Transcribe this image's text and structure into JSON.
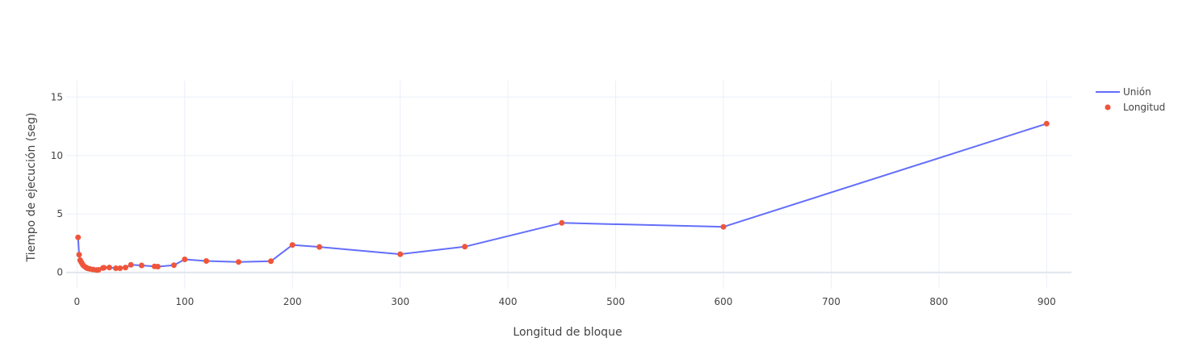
{
  "chart_data": {
    "type": "line",
    "xlabel": "Longitud de bloque",
    "ylabel": "Tiempo de ejecución (seg)",
    "xlim": [
      -10,
      923
    ],
    "ylim": [
      -1.4,
      16.4
    ],
    "xticks": [
      0,
      100,
      200,
      300,
      400,
      500,
      600,
      700,
      800,
      900
    ],
    "yticks": [
      0,
      5,
      10,
      15
    ],
    "grid": true,
    "legend_position": "top-right",
    "series": [
      {
        "name": "Unión",
        "mode": "line",
        "color": "#636efa",
        "x": [
          1,
          2,
          3,
          4,
          5,
          6,
          8,
          9,
          10,
          12,
          15,
          18,
          20,
          24,
          25,
          30,
          36,
          40,
          45,
          50,
          60,
          72,
          75,
          90,
          100,
          120,
          150,
          180,
          200,
          225,
          300,
          360,
          450,
          600,
          900
        ],
        "y": [
          3.0,
          1.52,
          1.05,
          0.88,
          0.72,
          0.58,
          0.45,
          0.38,
          0.35,
          0.3,
          0.25,
          0.21,
          0.22,
          0.38,
          0.4,
          0.42,
          0.36,
          0.36,
          0.42,
          0.65,
          0.6,
          0.52,
          0.5,
          0.62,
          1.12,
          0.98,
          0.9,
          0.96,
          2.35,
          2.18,
          1.56,
          2.2,
          4.24,
          3.9,
          12.72
        ]
      },
      {
        "name": "Longitud",
        "mode": "markers",
        "color": "#ef553b",
        "x": [
          1,
          2,
          3,
          4,
          5,
          6,
          8,
          9,
          10,
          12,
          15,
          18,
          20,
          24,
          25,
          30,
          36,
          40,
          45,
          50,
          60,
          72,
          75,
          90,
          100,
          120,
          150,
          180,
          200,
          225,
          300,
          360,
          450,
          600,
          900
        ],
        "y": [
          3.0,
          1.52,
          1.05,
          0.88,
          0.72,
          0.58,
          0.45,
          0.38,
          0.35,
          0.3,
          0.25,
          0.21,
          0.22,
          0.38,
          0.4,
          0.42,
          0.36,
          0.36,
          0.42,
          0.65,
          0.6,
          0.52,
          0.5,
          0.62,
          1.12,
          0.98,
          0.9,
          0.96,
          2.35,
          2.18,
          1.56,
          2.2,
          4.24,
          3.9,
          12.72
        ]
      }
    ]
  }
}
